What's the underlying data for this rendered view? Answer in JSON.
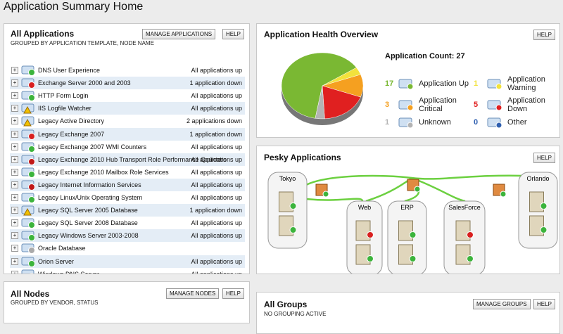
{
  "header": {
    "title": "Application Summary Home"
  },
  "all_applications": {
    "title": "All Applications",
    "subtitle": "GROUPED BY APPLICATION TEMPLATE, NODE NAME",
    "buttons": [
      "MANAGE APPLICATIONS",
      "HELP"
    ],
    "rows": [
      {
        "name": "DNS User Experience",
        "status": "All applications up"
      },
      {
        "name": "Exchange Server 2000 and 2003",
        "status": "1 application down"
      },
      {
        "name": "HTTP Form Login",
        "status": "All applications up"
      },
      {
        "name": "IIS Logfile Watcher",
        "status": "All applications up"
      },
      {
        "name": "Legacy Active Directory",
        "status": "2 applications down"
      },
      {
        "name": "Legacy Exchange 2007",
        "status": "1 application down"
      },
      {
        "name": "Legacy Exchange 2007 WMI Counters",
        "status": "All applications up"
      },
      {
        "name": "Legacy Exchange 2010 Hub Transport Role Performance Counters",
        "status": "All applications up"
      },
      {
        "name": "Legacy Exchange 2010 Mailbox Role Services",
        "status": "All applications up"
      },
      {
        "name": "Legacy Internet Information Services",
        "status": "All applications up"
      },
      {
        "name": "Legacy Linux/Unix Operating System",
        "status": "All applications up"
      },
      {
        "name": "Legacy SQL Server 2005 Database",
        "status": "1 application down"
      },
      {
        "name": "Legacy SQL Server 2008 Database",
        "status": "All applications up"
      },
      {
        "name": "Legacy Windows Server 2003-2008",
        "status": "All applications up"
      },
      {
        "name": "Oracle Database"
      },
      {
        "name": "Orion Server",
        "status": "All applications up"
      },
      {
        "name": "Windows DNS Server",
        "status": "All applications up"
      }
    ]
  },
  "health": {
    "title": "Application Health Overview",
    "help": "HELP",
    "count_label": "Application Count: 27",
    "legend": [
      {
        "count": 17,
        "label": "Application Up",
        "color": "#7ab833"
      },
      {
        "count": 1,
        "label": "Application Warning",
        "color": "#f2e23c"
      },
      {
        "count": 3,
        "label": "Application Critical",
        "color": "#f5a020"
      },
      {
        "count": 5,
        "label": "Application Down",
        "color": "#e02020"
      },
      {
        "count": 1,
        "label": "Unknown",
        "color": "#b4b4b4"
      },
      {
        "count": 0,
        "label": "Other",
        "color": "#3060b0"
      }
    ]
  },
  "pesky": {
    "title": "Pesky Applications",
    "help": "HELP",
    "groups": [
      "Tokyo",
      "Web",
      "ERP",
      "SalesForce",
      "Orlando"
    ]
  },
  "all_nodes": {
    "title": "All Nodes",
    "subtitle": "GROUPED BY VENDOR, STATUS",
    "buttons": [
      "MANAGE NODES",
      "HELP"
    ]
  },
  "all_groups": {
    "title": "All Groups",
    "subtitle": "NO GROUPING ACTIVE",
    "buttons": [
      "MANAGE GROUPS",
      "HELP"
    ]
  }
}
